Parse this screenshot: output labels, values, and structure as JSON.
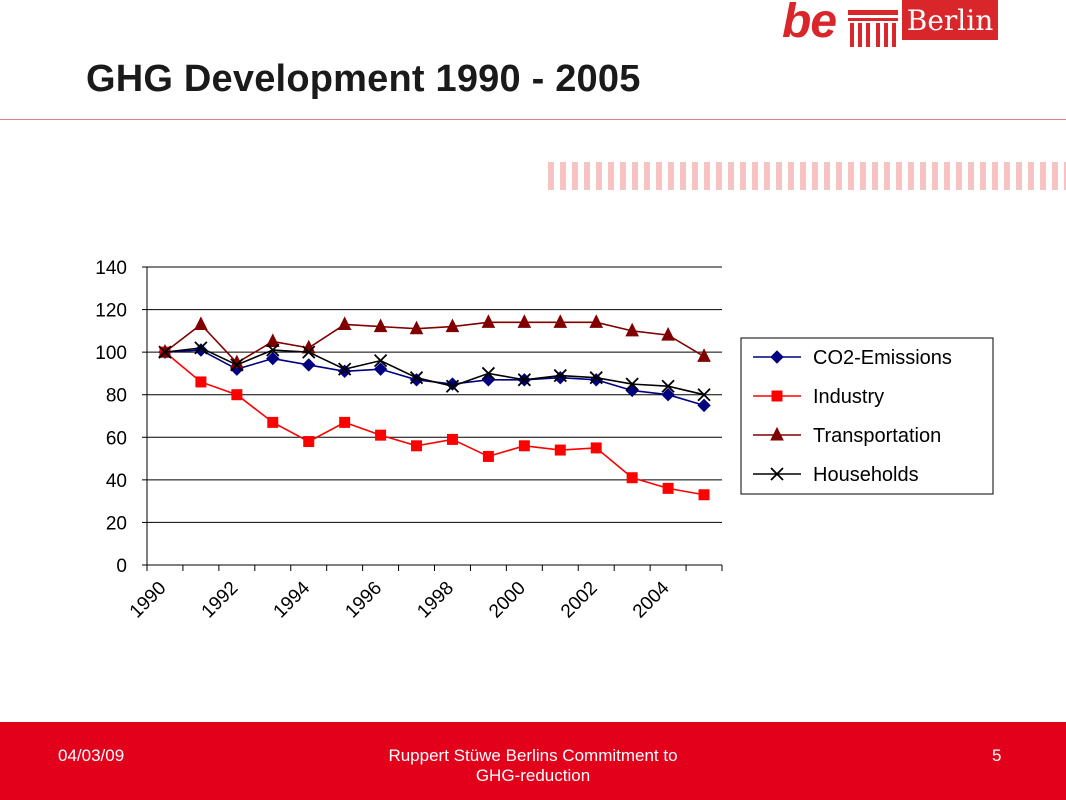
{
  "slide": {
    "title": "GHG Development 1990 - 2005",
    "logo_be": "be",
    "logo_city": "Berlin"
  },
  "footer": {
    "date": "04/03/09",
    "presenter": "Ruppert Stüwe Berlins Commitment to",
    "presenter_line2": "GHG-reduction",
    "page": "5"
  },
  "colors": {
    "accent": "#e3001b",
    "co2": "#000080",
    "industry": "#ff0000",
    "transportation": "#800000",
    "households": "#000000"
  },
  "chart_data": {
    "type": "line",
    "title": "",
    "xlabel": "",
    "ylabel": "",
    "ylim": [
      0,
      140
    ],
    "y_ticks": [
      0,
      20,
      40,
      60,
      80,
      100,
      120,
      140
    ],
    "x": [
      1990,
      1991,
      1992,
      1993,
      1994,
      1995,
      1996,
      1997,
      1998,
      1999,
      2000,
      2001,
      2002,
      2003,
      2004,
      2005
    ],
    "x_tick_labels": [
      "1990",
      "1992",
      "1994",
      "1996",
      "1998",
      "2000",
      "2002",
      "2004"
    ],
    "grid": true,
    "legend_position": "right",
    "series": [
      {
        "name": "CO2-Emissions",
        "marker": "diamond",
        "color": "#000080",
        "values": [
          100,
          101,
          92,
          97,
          94,
          91,
          92,
          87,
          85,
          87,
          87,
          88,
          87,
          82,
          80,
          75
        ]
      },
      {
        "name": "Industry",
        "marker": "square",
        "color": "#ff0000",
        "values": [
          100,
          86,
          80,
          67,
          58,
          67,
          61,
          56,
          59,
          51,
          56,
          54,
          55,
          41,
          36,
          33
        ]
      },
      {
        "name": "Transportation",
        "marker": "triangle",
        "color": "#800000",
        "values": [
          100,
          113,
          95,
          105,
          102,
          113,
          112,
          111,
          112,
          114,
          114,
          114,
          114,
          110,
          108,
          98
        ]
      },
      {
        "name": "Households",
        "marker": "x",
        "color": "#000000",
        "values": [
          100,
          102,
          94,
          101,
          100,
          92,
          96,
          88,
          84,
          90,
          87,
          89,
          88,
          85,
          84,
          80
        ]
      }
    ]
  }
}
